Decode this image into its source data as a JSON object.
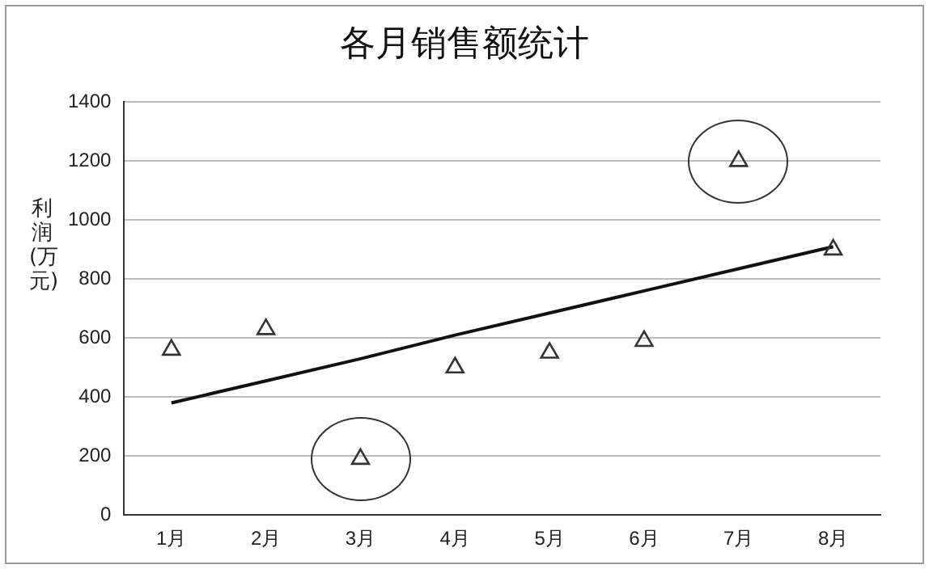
{
  "chart_data": {
    "type": "scatter",
    "title": "各月销售额统计",
    "ylabel": "利润(万元)",
    "categories": [
      "1月",
      "2月",
      "3月",
      "4月",
      "5月",
      "6月",
      "7月",
      "8月"
    ],
    "series": [
      {
        "color": "#333333",
        "marker": "triangle",
        "values": [
          560,
          630,
          190,
          500,
          550,
          590,
          1200,
          900
        ]
      },
      {
        "type": "line",
        "color": "#111111",
        "marker": "none",
        "values": [
          380,
          455,
          530,
          610,
          685,
          760,
          835,
          910
        ]
      }
    ],
    "ylim": [
      0,
      1400
    ],
    "yticks": [
      0,
      200,
      400,
      600,
      800,
      1000,
      1200,
      1400
    ],
    "grid": "y",
    "legend": false
  }
}
